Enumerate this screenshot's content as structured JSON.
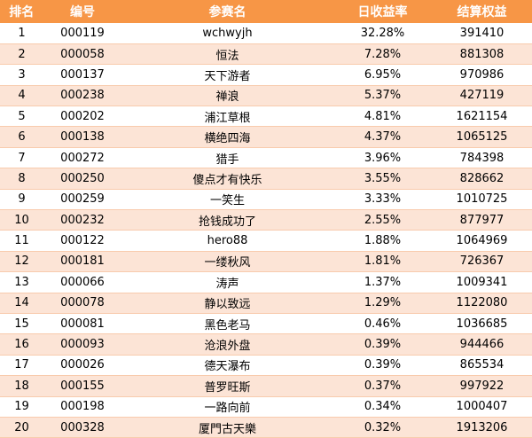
{
  "table": {
    "headers": [
      "排名",
      "编号",
      "参赛名",
      "日收益率",
      "结算权益"
    ],
    "rows": [
      [
        "1",
        "000119",
        "wchwyjh",
        "32.28%",
        "391410"
      ],
      [
        "2",
        "000058",
        "恒法",
        "7.28%",
        "881308"
      ],
      [
        "3",
        "000137",
        "天下游者",
        "6.95%",
        "970986"
      ],
      [
        "4",
        "000238",
        "禅浪",
        "5.37%",
        "427119"
      ],
      [
        "5",
        "000202",
        "浦江草根",
        "4.81%",
        "1621154"
      ],
      [
        "6",
        "000138",
        "横绝四海",
        "4.37%",
        "1065125"
      ],
      [
        "7",
        "000272",
        "猎手",
        "3.96%",
        "784398"
      ],
      [
        "8",
        "000250",
        "傻点才有快乐",
        "3.55%",
        "828662"
      ],
      [
        "9",
        "000259",
        "一笑生",
        "3.33%",
        "1010725"
      ],
      [
        "10",
        "000232",
        "抢钱成功了",
        "2.55%",
        "877977"
      ],
      [
        "11",
        "000122",
        "hero88",
        "1.88%",
        "1064969"
      ],
      [
        "12",
        "000181",
        "一缕秋风",
        "1.81%",
        "726367"
      ],
      [
        "13",
        "000066",
        "涛声",
        "1.37%",
        "1009341"
      ],
      [
        "14",
        "000078",
        "静以致远",
        "1.29%",
        "1122080"
      ],
      [
        "15",
        "000081",
        "黑色老马",
        "0.46%",
        "1036685"
      ],
      [
        "16",
        "000093",
        "沧浪外盘",
        "0.39%",
        "944466"
      ],
      [
        "17",
        "000026",
        "德天瀑布",
        "0.39%",
        "865534"
      ],
      [
        "18",
        "000155",
        "普罗旺斯",
        "0.37%",
        "997922"
      ],
      [
        "19",
        "000198",
        "一路向前",
        "0.34%",
        "1000407"
      ],
      [
        "20",
        "000328",
        "厦門古天樂",
        "0.32%",
        "1913206"
      ]
    ]
  },
  "colors": {
    "header_bg": "#f79646",
    "header_text": "#ffffff",
    "row_alt_bg": "#fce4d6"
  }
}
